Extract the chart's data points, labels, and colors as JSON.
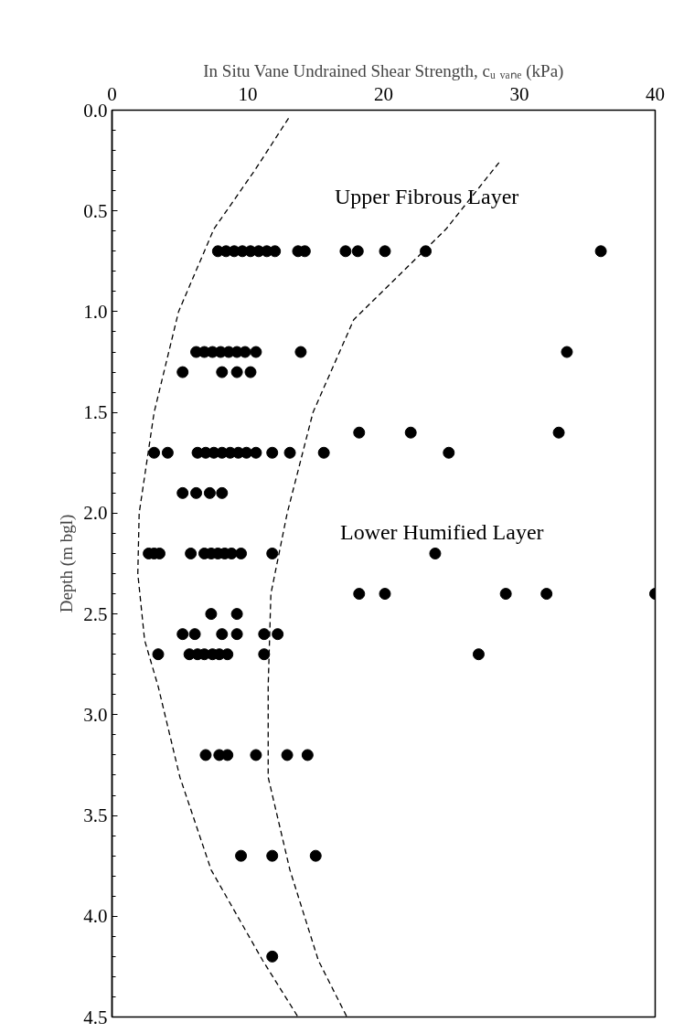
{
  "chart_data": {
    "type": "scatter",
    "xlabel": "In Situ Vane Undrained Shear Strength, cᵤ ᵥₐₙₑ (kPa)",
    "ylabel": "Depth (m bgl)",
    "xlim": [
      0,
      40
    ],
    "xticks": [
      0,
      10,
      20,
      30,
      40
    ],
    "ylim": [
      4.5,
      0
    ],
    "yticks": [
      {
        "value": 0,
        "label": "0.0"
      },
      {
        "value": 0.5,
        "label": "0.5"
      },
      {
        "value": 1,
        "label": "1.0"
      },
      {
        "value": 1.5,
        "label": "1.5"
      },
      {
        "value": 2,
        "label": "2.0"
      },
      {
        "value": 2.5,
        "label": "2.5"
      },
      {
        "value": 3,
        "label": "3.0"
      },
      {
        "value": 3.5,
        "label": "3.5"
      },
      {
        "value": 4,
        "label": "4.0"
      },
      {
        "value": 4.5,
        "label": "4.5"
      }
    ],
    "grid": false,
    "annotations": [
      "Upper Fibrous Layer",
      "Lower Humified Layer"
    ],
    "series": [
      {
        "color": "#000000",
        "marker": "circle",
        "x": [
          7.8,
          8.4,
          9.0,
          9.6,
          10.2,
          10.8,
          11.4,
          12.0,
          13.7,
          14.2,
          17.2,
          18.1,
          20.1,
          23.1,
          36.0,
          6.2,
          6.8,
          7.4,
          8.0,
          8.6,
          9.2,
          9.8,
          10.6,
          13.9,
          33.5,
          5.2,
          8.1,
          9.2,
          10.2,
          18.2,
          22.0,
          32.9,
          3.1,
          4.1,
          6.3,
          6.9,
          7.5,
          8.1,
          8.7,
          9.3,
          9.9,
          10.6,
          11.8,
          13.1,
          15.6,
          24.8,
          5.2,
          6.2,
          7.2,
          8.1,
          2.7,
          3.1,
          3.5,
          5.8,
          6.8,
          7.3,
          7.8,
          8.3,
          8.8,
          9.5,
          11.8,
          23.8,
          18.2,
          20.1,
          29.0,
          32.0,
          40.0,
          7.3,
          9.2,
          5.2,
          6.1,
          8.1,
          9.2,
          11.2,
          12.2,
          3.4,
          5.7,
          6.3,
          6.8,
          7.4,
          7.9,
          8.5,
          11.2,
          27.0,
          6.9,
          7.9,
          8.5,
          10.6,
          12.9,
          14.4,
          9.5,
          11.8,
          15.0,
          11.8
        ],
        "values": [
          0.7,
          0.7,
          0.7,
          0.7,
          0.7,
          0.7,
          0.7,
          0.7,
          0.7,
          0.7,
          0.7,
          0.7,
          0.7,
          0.7,
          0.7,
          1.2,
          1.2,
          1.2,
          1.2,
          1.2,
          1.2,
          1.2,
          1.2,
          1.2,
          1.2,
          1.3,
          1.3,
          1.3,
          1.3,
          1.6,
          1.6,
          1.6,
          1.7,
          1.7,
          1.7,
          1.7,
          1.7,
          1.7,
          1.7,
          1.7,
          1.7,
          1.7,
          1.7,
          1.7,
          1.7,
          1.7,
          1.9,
          1.9,
          1.9,
          1.9,
          2.2,
          2.2,
          2.2,
          2.2,
          2.2,
          2.2,
          2.2,
          2.2,
          2.2,
          2.2,
          2.2,
          2.2,
          2.4,
          2.4,
          2.4,
          2.4,
          2.4,
          2.5,
          2.5,
          2.6,
          2.6,
          2.6,
          2.6,
          2.6,
          2.6,
          2.7,
          2.7,
          2.7,
          2.7,
          2.7,
          2.7,
          2.7,
          2.7,
          2.7,
          3.2,
          3.2,
          3.2,
          3.2,
          3.2,
          3.2,
          3.7,
          3.7,
          3.7,
          4.2
        ]
      },
      {
        "type": "line",
        "color": "#000000",
        "line_style": "dashed",
        "marker": "none",
        "x": [
          13.0,
          10.5,
          7.5,
          4.9,
          3.1,
          2.0,
          1.9,
          2.4,
          3.4,
          5.0,
          7.3,
          11.1,
          13.7
        ],
        "values": [
          0.04,
          0.3,
          0.59,
          1.0,
          1.5,
          2.0,
          2.3,
          2.63,
          2.86,
          3.31,
          3.77,
          4.22,
          4.5
        ]
      },
      {
        "type": "line",
        "color": "#000000",
        "line_style": "dashed",
        "marker": "none",
        "x": [
          28.5,
          24.6,
          17.8,
          14.8,
          12.9,
          11.7,
          11.5,
          11.5,
          13.1,
          15.2,
          17.3
        ],
        "values": [
          0.26,
          0.59,
          1.04,
          1.5,
          2.0,
          2.4,
          2.86,
          3.31,
          3.77,
          4.22,
          4.5
        ]
      }
    ]
  }
}
